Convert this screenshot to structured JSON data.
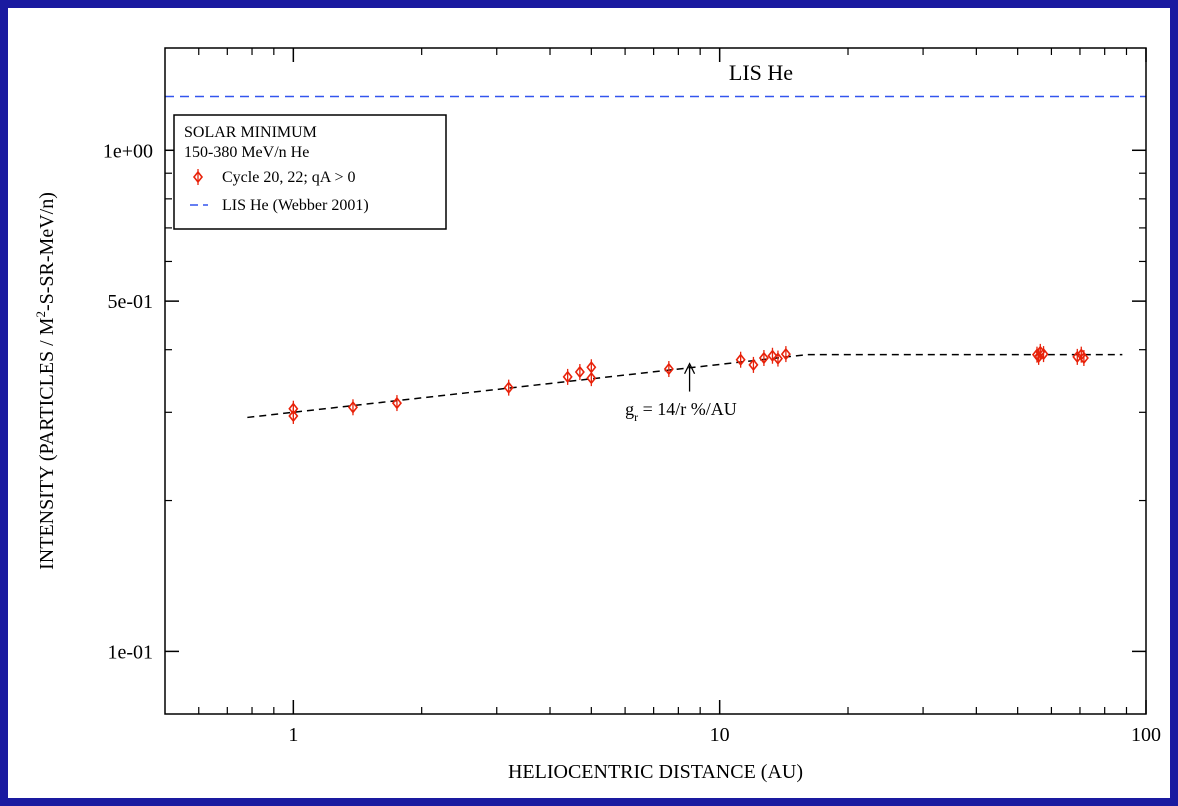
{
  "colors": {
    "border": "#1a1aa0",
    "data_points": "#e8220a",
    "lis_line": "#3355ee",
    "fit_line": "#000000"
  },
  "chart_data": {
    "type": "scatter",
    "xlabel": "HELIOCENTRIC DISTANCE (AU)",
    "ylabel_parts": {
      "pre": "INTENSITY (PARTICLES / M",
      "sup": "2",
      "post": "-S-SR-MeV/n)"
    },
    "x_scale": "log",
    "y_scale": "log",
    "xlim": [
      0.5,
      100
    ],
    "ylim": [
      0.075,
      1.6
    ],
    "x_tick_labels": [
      {
        "value": 1,
        "label": "1"
      },
      {
        "value": 10,
        "label": "10"
      },
      {
        "value": 100,
        "label": "100"
      }
    ],
    "y_tick_labels": [
      {
        "value": 0.1,
        "label": "1e-01"
      },
      {
        "value": 0.5,
        "label": "5e-01"
      },
      {
        "value": 1.0,
        "label": "1e+00"
      }
    ],
    "x_minor_ticks": [
      0.6,
      0.7,
      0.8,
      0.9,
      2,
      3,
      4,
      5,
      6,
      7,
      8,
      9,
      20,
      30,
      40,
      50,
      60,
      70,
      80,
      90
    ],
    "y_minor_ticks": [
      0.2,
      0.3,
      0.4,
      0.6,
      0.7,
      0.8,
      0.9
    ],
    "legend": {
      "position": "top-left",
      "lines": [
        "SOLAR MINIMUM",
        "150-380 MeV/n He"
      ],
      "entries": [
        {
          "symbol": "diamond",
          "label": "Cycle 20, 22;  qA > 0"
        },
        {
          "symbol": "dashed-line",
          "label": "LIS He (Webber 2001)"
        }
      ]
    },
    "series": [
      {
        "name": "Cycle 20, 22;  qA > 0",
        "type": "scatter",
        "points": [
          {
            "x": 1.0,
            "y": 0.305
          },
          {
            "x": 1.0,
            "y": 0.295
          },
          {
            "x": 1.38,
            "y": 0.307
          },
          {
            "x": 1.75,
            "y": 0.313
          },
          {
            "x": 3.2,
            "y": 0.336
          },
          {
            "x": 4.4,
            "y": 0.353
          },
          {
            "x": 4.7,
            "y": 0.361
          },
          {
            "x": 5.0,
            "y": 0.351
          },
          {
            "x": 5.0,
            "y": 0.369
          },
          {
            "x": 7.6,
            "y": 0.366
          },
          {
            "x": 11.2,
            "y": 0.382
          },
          {
            "x": 12.0,
            "y": 0.373
          },
          {
            "x": 12.7,
            "y": 0.385
          },
          {
            "x": 13.3,
            "y": 0.389
          },
          {
            "x": 13.7,
            "y": 0.384
          },
          {
            "x": 14.3,
            "y": 0.392
          },
          {
            "x": 55.5,
            "y": 0.391
          },
          {
            "x": 56.5,
            "y": 0.396
          },
          {
            "x": 57.5,
            "y": 0.392
          },
          {
            "x": 56.0,
            "y": 0.387
          },
          {
            "x": 69.0,
            "y": 0.387
          },
          {
            "x": 70.5,
            "y": 0.391
          },
          {
            "x": 71.5,
            "y": 0.385
          }
        ]
      },
      {
        "name": "fit",
        "type": "dashed-line",
        "points": [
          {
            "x": 0.78,
            "y": 0.293
          },
          {
            "x": 16.0,
            "y": 0.391
          },
          {
            "x": 88.0,
            "y": 0.391
          }
        ]
      },
      {
        "name": "LIS He (Webber 2001)",
        "type": "dashed-line",
        "points": [
          {
            "x": 0.5,
            "y": 1.28
          },
          {
            "x": 100,
            "y": 1.28
          }
        ]
      }
    ],
    "annotations": [
      {
        "id": "lis",
        "text": "LIS He",
        "x": 12.5,
        "y": 1.38
      },
      {
        "id": "gr",
        "base": "g",
        "sub": "r",
        "rest": " = 14/r %/AU",
        "x": 6.0,
        "y": 0.296,
        "arrow_from": {
          "x": 8.5,
          "y": 0.33
        },
        "arrow_to": {
          "x": 8.5,
          "y": 0.375
        }
      }
    ]
  }
}
